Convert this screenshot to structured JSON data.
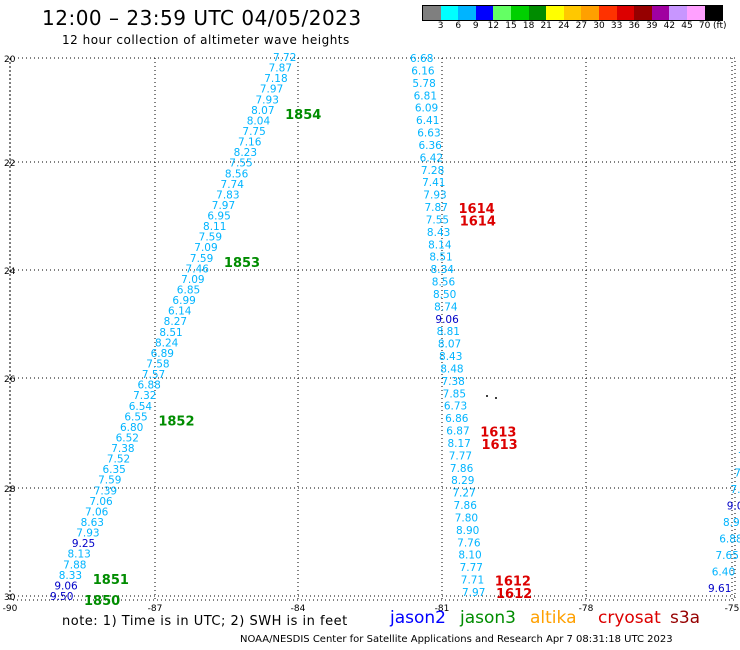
{
  "header": {
    "title": "12:00 – 23:59 UTC 04/05/2023",
    "subtitle": "12 hour collection of altimeter wave heights"
  },
  "colorbar": {
    "unit": "(ft)",
    "ticks": [
      "3",
      "6",
      "9",
      "12",
      "15",
      "18",
      "21",
      "24",
      "27",
      "30",
      "33",
      "36",
      "39",
      "42",
      "45",
      "70"
    ],
    "colors": [
      "#7f7f7f",
      "#00ffff",
      "#00b4ff",
      "#0000ff",
      "#64ff64",
      "#00d000",
      "#008c00",
      "#ffff00",
      "#ffc800",
      "#ffa000",
      "#ff3200",
      "#dc0000",
      "#960000",
      "#a000a0",
      "#c896ff",
      "#ffa0ff",
      "#000000"
    ]
  },
  "axes": {
    "lat_labels": [
      "20",
      "22",
      "24",
      "26",
      "28",
      "30"
    ],
    "lon_labels": [
      "-90",
      "-87",
      "-84",
      "-81",
      "-78",
      "-75"
    ],
    "grid": "dotted"
  },
  "tracks": {
    "track_a": {
      "color": "#00b4ff",
      "values": [
        "7.72",
        "7.87",
        "7.18",
        "7.97",
        "7.93",
        "8.07",
        "8.04",
        "7.75",
        "7.16",
        "8.23",
        "7.55",
        "8.56",
        "7.74",
        "7.83",
        "7.97",
        "6.95",
        "8.11",
        "7.59",
        "7.09",
        "7.59",
        "7.46",
        "7.09",
        "6.85",
        "6.99",
        "6.14",
        "8.27",
        "8.51",
        "8.24",
        "6.89",
        "7.58",
        "7.57",
        "6.88",
        "7.32",
        "6.54",
        "6.55",
        "6.80",
        "6.52",
        "7.38",
        "7.52",
        "6.35",
        "7.59",
        "7.39",
        "7.06",
        "7.06",
        "8.63",
        "7.93",
        "9.25",
        "8.13",
        "7.88",
        "8.33",
        "9.06",
        "9.50"
      ],
      "times": [
        {
          "label": "1854",
          "index": 5
        },
        {
          "label": "1853",
          "index": 19
        },
        {
          "label": "1852",
          "index": 34
        },
        {
          "label": "1851",
          "index": 49
        },
        {
          "label": "1850",
          "index": 51
        }
      ]
    },
    "track_b": {
      "color": "#00b4ff",
      "values": [
        "6.68",
        "6.16",
        "5.78",
        "6.81",
        "6.09",
        "6.41",
        "6.63",
        "6.36",
        "6.42",
        "7.28",
        "7.41",
        "7.93",
        "7.87",
        "7.55",
        "8.43",
        "8.14",
        "8.51",
        "8.34",
        "8.56",
        "8.50",
        "8.74",
        "9.06",
        "8.81",
        "8.07",
        "8.43",
        "8.48",
        "7.38",
        "7.85",
        "6.73",
        "6.86",
        "6.87",
        "8.17",
        "7.77",
        "7.86",
        "8.29",
        "7.27",
        "7.86",
        "7.80",
        "8.90",
        "7.76",
        "8.10",
        "7.77",
        "7.71",
        "7.97"
      ],
      "times": [
        {
          "label": "1614",
          "index": 12
        },
        {
          "label": "1614",
          "index": 13
        },
        {
          "label": "1613",
          "index": 30
        },
        {
          "label": "1613",
          "index": 31
        },
        {
          "label": "1612",
          "index": 42
        },
        {
          "label": "1612",
          "index": 43
        }
      ]
    },
    "track_c": {
      "color": "#00b4ff",
      "values": [
        "7",
        "7.",
        "7.",
        "9.0",
        "8.90",
        "6.88",
        "7.65",
        "6.40",
        "9.61"
      ]
    }
  },
  "footer": {
    "note": "note:  1) Time is in UTC;  2) SWH is in feet",
    "satellites": [
      {
        "name": "jason2",
        "color": "#0000ff"
      },
      {
        "name": "jason3",
        "color": "#008c00"
      },
      {
        "name": "altika",
        "color": "#ffa000"
      },
      {
        "name": "cryosat",
        "color": "#dc0000"
      },
      {
        "name": "s3a",
        "color": "#960000"
      }
    ],
    "credit": "NOAA/NESDIS Center for Satellite Applications and Research   Apr  7 08:31:18 UTC 2023"
  }
}
